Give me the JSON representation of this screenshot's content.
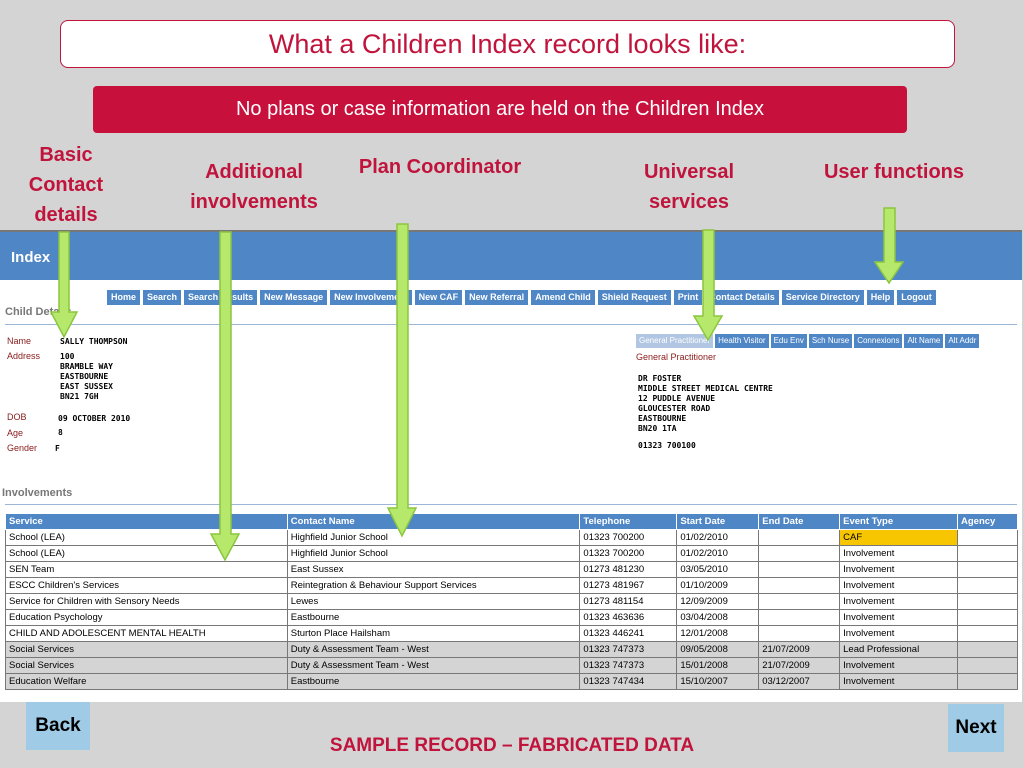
{
  "slide": {
    "title": "What a Children Index record looks like:",
    "banner": "No plans or  case information are held on the Children Index",
    "callouts": {
      "basic": [
        "Basic",
        "Contact",
        "details"
      ],
      "additional": [
        "Additional",
        "involvements"
      ],
      "plan": [
        "Plan Coordinator"
      ],
      "universal": [
        "Universal",
        "services"
      ],
      "user": [
        "User functions"
      ]
    },
    "footer": "SAMPLE RECORD – FABRICATED DATA",
    "back_label": "Back",
    "next_label": "Next"
  },
  "app": {
    "title": "Index",
    "toolbar": [
      "Home",
      "Search",
      "Search Results",
      "New Message",
      "New Involvement",
      "New CAF",
      "New Referral",
      "Amend Child",
      "Shield Request",
      "Print",
      "Contact Details",
      "Service Directory",
      "Help",
      "Logout"
    ],
    "child_details_title": "Child Details",
    "child": {
      "name_label": "Name",
      "name": "SALLY THOMPSON",
      "address_label": "Address",
      "address": "100\nBRAMBLE WAY\nEASTBOURNE\nEAST SUSSEX\nBN21 7GH",
      "dob_label": "DOB",
      "dob": "09 OCTOBER 2010",
      "age_label": "Age",
      "age": "8",
      "gender_label": "Gender",
      "gender": "F"
    },
    "tabs": [
      "General Practitioner",
      "Health Visitor",
      "Edu Env",
      "Sch Nurse",
      "Connexions",
      "Alt Name",
      "Alt Addr"
    ],
    "gp": {
      "title": "General Practitioner",
      "details": "DR FOSTER\nMIDDLE STREET MEDICAL CENTRE\n12 PUDDLE AVENUE\nGLOUCESTER ROAD\nEASTBOURNE\nBN20 1TA",
      "phone": "01323 700100"
    },
    "involvements_title": "Involvements",
    "columns": [
      "Service",
      "Contact Name",
      "Telephone",
      "Start Date",
      "End Date",
      "Event Type",
      "Agency"
    ],
    "rows": [
      {
        "service": "School (LEA)",
        "contact": "Highfield Junior School",
        "phone": "01323 700200",
        "start": "01/02/2010",
        "end": "",
        "event": "CAF",
        "agency": "",
        "grey": false
      },
      {
        "service": "School (LEA)",
        "contact": "Highfield Junior School",
        "phone": "01323 700200",
        "start": "01/02/2010",
        "end": "",
        "event": "Involvement",
        "agency": "",
        "grey": false
      },
      {
        "service": "SEN Team",
        "contact": "East Sussex",
        "phone": "01273 481230",
        "start": "03/05/2010",
        "end": "",
        "event": "Involvement",
        "agency": "",
        "grey": false
      },
      {
        "service": "ESCC Children's Services",
        "contact": "Reintegration & Behaviour Support Services",
        "phone": "01273 481967",
        "start": "01/10/2009",
        "end": "",
        "event": "Involvement",
        "agency": "",
        "grey": false
      },
      {
        "service": "Service for Children with Sensory Needs",
        "contact": "Lewes",
        "phone": "01273 481154",
        "start": "12/09/2009",
        "end": "",
        "event": "Involvement",
        "agency": "",
        "grey": false
      },
      {
        "service": "Education Psychology",
        "contact": "Eastbourne",
        "phone": "01323 463636",
        "start": "03/04/2008",
        "end": "",
        "event": "Involvement",
        "agency": "",
        "grey": false
      },
      {
        "service": "CHILD AND ADOLESCENT MENTAL HEALTH",
        "contact": "Sturton Place Hailsham",
        "phone": "01323 446241",
        "start": "12/01/2008",
        "end": "",
        "event": "Involvement",
        "agency": "",
        "grey": false
      },
      {
        "service": "Social Services",
        "contact": "Duty & Assessment Team - West",
        "phone": "01323 747373",
        "start": "09/05/2008",
        "end": "21/07/2009",
        "event": "Lead Professional",
        "agency": "",
        "grey": true
      },
      {
        "service": "Social Services",
        "contact": "Duty & Assessment Team - West",
        "phone": "01323 747373",
        "start": "15/01/2008",
        "end": "21/07/2009",
        "event": "Involvement",
        "agency": "",
        "grey": true
      },
      {
        "service": "Education Welfare",
        "contact": "Eastbourne",
        "phone": "01323 747434",
        "start": "15/10/2007",
        "end": "03/12/2007",
        "event": "Involvement",
        "agency": "",
        "grey": true
      }
    ]
  }
}
